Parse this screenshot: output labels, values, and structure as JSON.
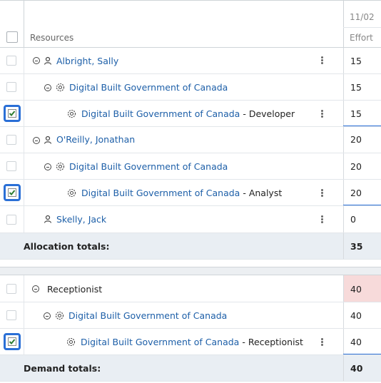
{
  "header": {
    "resources_label": "Resources",
    "date_label": "11/02",
    "effort_label": "Effort"
  },
  "rows": [
    {
      "name": "Albright, Sally",
      "suffix": "",
      "effort": "15",
      "checked": false
    },
    {
      "name": "Digital Built Government of Canada",
      "suffix": "",
      "effort": "15",
      "checked": false
    },
    {
      "name": "Digital Built Government of Canada",
      "suffix": " - Developer",
      "effort": "15",
      "checked": true
    },
    {
      "name": "O'Reilly, Jonathan",
      "suffix": "",
      "effort": "20",
      "checked": false
    },
    {
      "name": "Digital Built Government of Canada",
      "suffix": "",
      "effort": "20",
      "checked": false
    },
    {
      "name": "Digital Built Government of Canada",
      "suffix": " - Analyst",
      "effort": "20",
      "checked": true
    },
    {
      "name": "Skelly, Jack",
      "suffix": "",
      "effort": "0",
      "checked": false
    }
  ],
  "allocation_totals": {
    "label": "Allocation totals:",
    "value": "35"
  },
  "demand_rows": [
    {
      "name": "Receptionist",
      "suffix": "",
      "effort": "40",
      "checked": false
    },
    {
      "name": "Digital Built Government of Canada",
      "suffix": "",
      "effort": "40",
      "checked": false
    },
    {
      "name": "Digital Built Government of Canada",
      "suffix": " - Receptionist",
      "effort": "40",
      "checked": true
    }
  ],
  "demand_totals": {
    "label": "Demand totals:",
    "value": "40"
  },
  "colors": {
    "link": "#1d5fa8",
    "highlight_cell": "#f7dada",
    "totals_bg": "#e9eef3",
    "focus": "#2a6fd6"
  }
}
